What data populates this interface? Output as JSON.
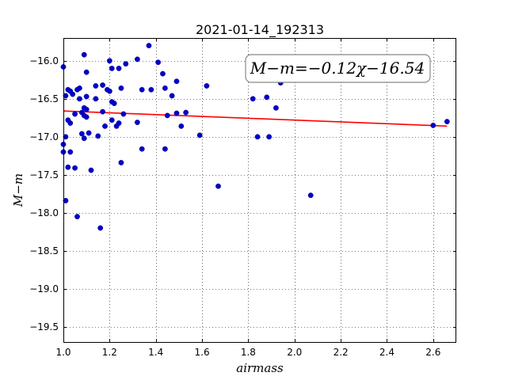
{
  "chart_data": {
    "type": "scatter",
    "title": "2021-01-14_192313",
    "xlabel": "airmass",
    "ylabel": "M−m",
    "annotation": "M−m=−0.12χ−16.54",
    "xlim": [
      1.0,
      2.7
    ],
    "ylim": [
      -19.7,
      -15.7
    ],
    "x_ticks": [
      1.0,
      1.2,
      1.4,
      1.6,
      1.8,
      2.0,
      2.2,
      2.4,
      2.6
    ],
    "x_tick_labels": [
      "1.0",
      "1.2",
      "1.4",
      "1.6",
      "1.8",
      "2.0",
      "2.2",
      "2.4",
      "2.6"
    ],
    "y_ticks": [
      -16.0,
      -16.5,
      -17.0,
      -17.5,
      -18.0,
      -18.5,
      -19.0,
      -19.5
    ],
    "y_tick_labels": [
      "−16.0",
      "−16.5",
      "−17.0",
      "−17.5",
      "−18.0",
      "−18.5",
      "−19.0",
      "−19.5"
    ],
    "grid": true,
    "point_color": "#0000cc",
    "fit_color": "#ff0000",
    "fit_line": {
      "slope": -0.12,
      "intercept": -16.54,
      "x_range": [
        1.0,
        2.66
      ]
    },
    "points": [
      {
        "x": 1.0,
        "y": -16.08
      },
      {
        "x": 1.01,
        "y": -16.46
      },
      {
        "x": 1.01,
        "y": -17.0
      },
      {
        "x": 1.0,
        "y": -17.1
      },
      {
        "x": 1.0,
        "y": -17.2
      },
      {
        "x": 1.01,
        "y": -17.84
      },
      {
        "x": 1.02,
        "y": -16.38
      },
      {
        "x": 1.02,
        "y": -16.78
      },
      {
        "x": 1.02,
        "y": -17.4
      },
      {
        "x": 1.03,
        "y": -16.4
      },
      {
        "x": 1.03,
        "y": -16.82
      },
      {
        "x": 1.03,
        "y": -17.2
      },
      {
        "x": 1.04,
        "y": -16.44
      },
      {
        "x": 1.05,
        "y": -16.7
      },
      {
        "x": 1.05,
        "y": -17.41
      },
      {
        "x": 1.06,
        "y": -16.38
      },
      {
        "x": 1.06,
        "y": -18.05
      },
      {
        "x": 1.07,
        "y": -16.36
      },
      {
        "x": 1.07,
        "y": -16.5
      },
      {
        "x": 1.08,
        "y": -16.68
      },
      {
        "x": 1.08,
        "y": -16.96
      },
      {
        "x": 1.09,
        "y": -15.92
      },
      {
        "x": 1.09,
        "y": -16.62
      },
      {
        "x": 1.09,
        "y": -16.72
      },
      {
        "x": 1.09,
        "y": -17.02
      },
      {
        "x": 1.1,
        "y": -16.15
      },
      {
        "x": 1.1,
        "y": -16.47
      },
      {
        "x": 1.1,
        "y": -16.64
      },
      {
        "x": 1.1,
        "y": -16.74
      },
      {
        "x": 1.11,
        "y": -16.95
      },
      {
        "x": 1.12,
        "y": -17.44
      },
      {
        "x": 1.14,
        "y": -16.33
      },
      {
        "x": 1.14,
        "y": -16.5
      },
      {
        "x": 1.15,
        "y": -16.99
      },
      {
        "x": 1.16,
        "y": -18.2
      },
      {
        "x": 1.17,
        "y": -16.32
      },
      {
        "x": 1.17,
        "y": -16.67
      },
      {
        "x": 1.18,
        "y": -16.86
      },
      {
        "x": 1.19,
        "y": -16.38
      },
      {
        "x": 1.2,
        "y": -16.4
      },
      {
        "x": 1.2,
        "y": -16.0
      },
      {
        "x": 1.21,
        "y": -16.1
      },
      {
        "x": 1.21,
        "y": -16.78
      },
      {
        "x": 1.21,
        "y": -16.54
      },
      {
        "x": 1.22,
        "y": -16.56
      },
      {
        "x": 1.23,
        "y": -16.86
      },
      {
        "x": 1.24,
        "y": -16.1
      },
      {
        "x": 1.24,
        "y": -16.82
      },
      {
        "x": 1.25,
        "y": -16.36
      },
      {
        "x": 1.25,
        "y": -17.34
      },
      {
        "x": 1.26,
        "y": -16.7
      },
      {
        "x": 1.27,
        "y": -16.04
      },
      {
        "x": 1.32,
        "y": -15.98
      },
      {
        "x": 1.32,
        "y": -16.81
      },
      {
        "x": 1.34,
        "y": -16.38
      },
      {
        "x": 1.34,
        "y": -17.16
      },
      {
        "x": 1.37,
        "y": -15.8
      },
      {
        "x": 1.38,
        "y": -16.38
      },
      {
        "x": 1.41,
        "y": -16.02
      },
      {
        "x": 1.43,
        "y": -16.17
      },
      {
        "x": 1.44,
        "y": -16.36
      },
      {
        "x": 1.44,
        "y": -17.16
      },
      {
        "x": 1.45,
        "y": -16.72
      },
      {
        "x": 1.47,
        "y": -16.46
      },
      {
        "x": 1.49,
        "y": -16.27
      },
      {
        "x": 1.49,
        "y": -16.69
      },
      {
        "x": 1.51,
        "y": -16.86
      },
      {
        "x": 1.53,
        "y": -16.68
      },
      {
        "x": 1.59,
        "y": -16.98
      },
      {
        "x": 1.62,
        "y": -16.33
      },
      {
        "x": 1.67,
        "y": -17.65
      },
      {
        "x": 1.82,
        "y": -16.5
      },
      {
        "x": 1.84,
        "y": -17.0
      },
      {
        "x": 1.88,
        "y": -16.48
      },
      {
        "x": 1.89,
        "y": -17.0
      },
      {
        "x": 1.92,
        "y": -16.62
      },
      {
        "x": 1.94,
        "y": -16.29
      },
      {
        "x": 2.07,
        "y": -17.77
      },
      {
        "x": 2.1,
        "y": -16.2
      },
      {
        "x": 2.6,
        "y": -16.85
      },
      {
        "x": 2.66,
        "y": -16.8
      }
    ]
  }
}
